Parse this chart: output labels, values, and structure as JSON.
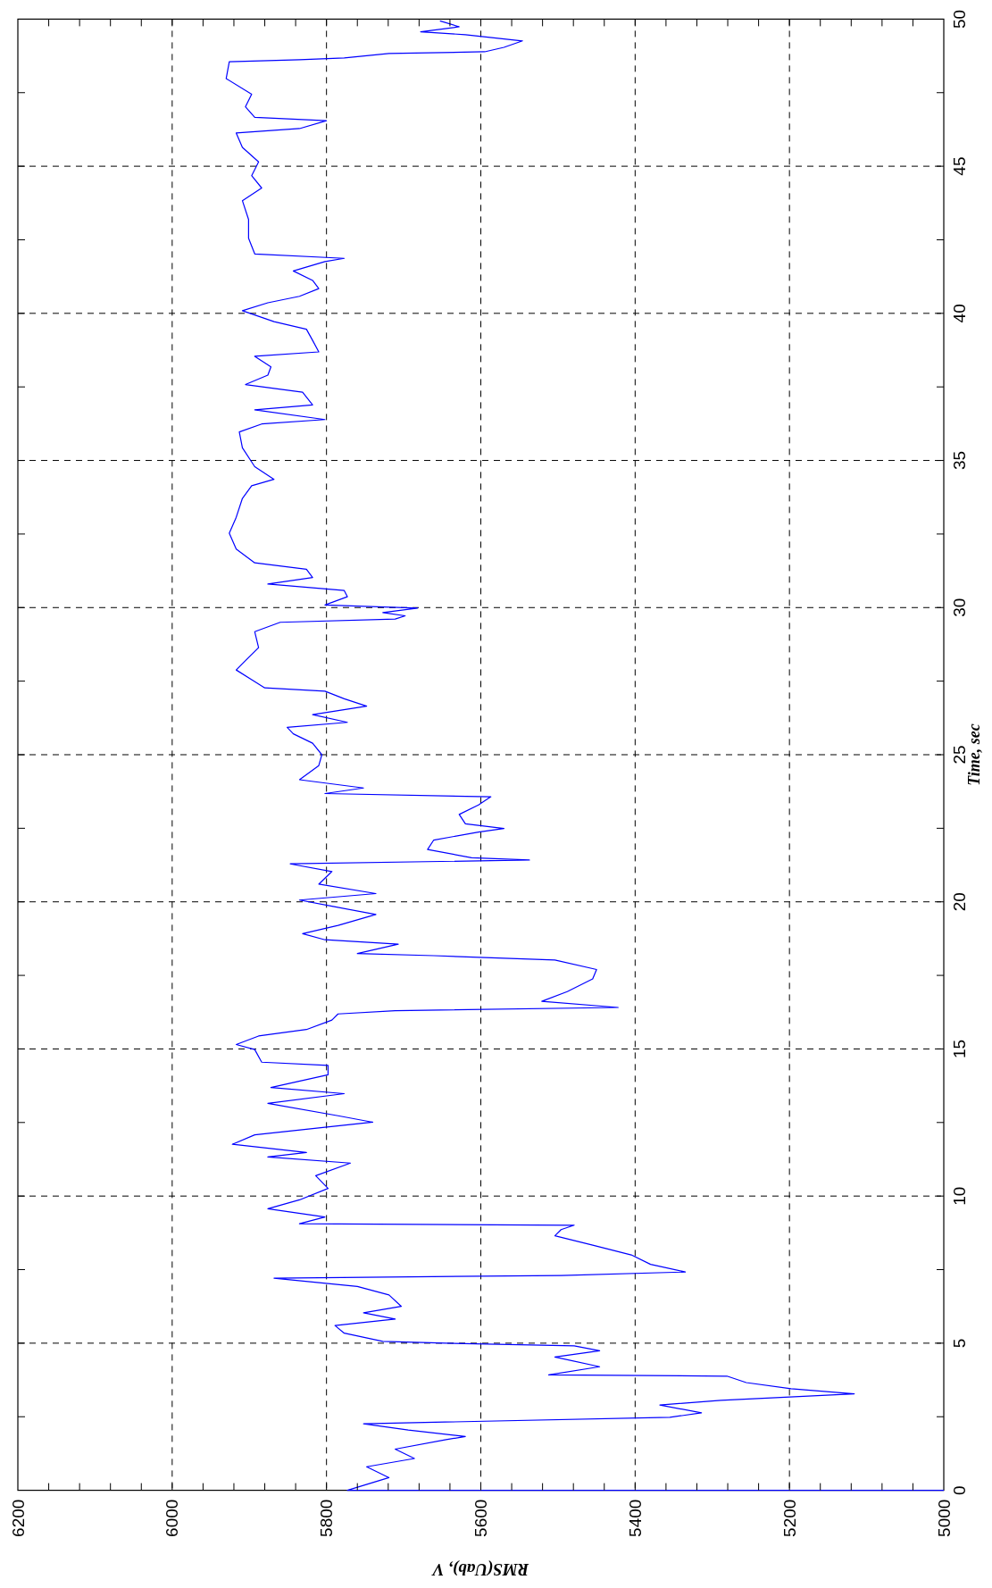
{
  "chart_data": {
    "type": "line",
    "ylabel": "Time, sec",
    "xlabel": "RMS(Uab), V",
    "ylim": [
      0,
      50
    ],
    "xlim": [
      6200,
      5000
    ],
    "yticks": [
      0,
      {
        "value": 2.5,
        "label": null
      },
      5,
      {
        "value": 7.5,
        "label": null
      },
      10,
      {
        "value": 12.5,
        "label": null
      },
      15,
      {
        "value": 17.5,
        "label": null
      },
      20,
      {
        "value": 22.5,
        "label": null
      },
      25,
      {
        "value": 27.5,
        "label": null
      },
      30,
      {
        "value": 32.5,
        "label": null
      },
      35,
      {
        "value": 37.5,
        "label": null
      },
      40,
      {
        "value": 42.5,
        "label": null
      },
      45,
      {
        "value": 47.5,
        "label": null
      },
      50
    ],
    "xticks": [
      5000,
      {
        "value": 5040,
        "label": null
      },
      {
        "value": 5080,
        "label": null
      },
      {
        "value": 5120,
        "label": null
      },
      {
        "value": 5160,
        "label": null
      },
      5200,
      {
        "value": 5240,
        "label": null
      },
      {
        "value": 5280,
        "label": null
      },
      {
        "value": 5320,
        "label": null
      },
      {
        "value": 5360,
        "label": null
      },
      5400,
      {
        "value": 5440,
        "label": null
      },
      {
        "value": 5480,
        "label": null
      },
      {
        "value": 5520,
        "label": null
      },
      {
        "value": 5560,
        "label": null
      },
      5600,
      {
        "value": 5640,
        "label": null
      },
      {
        "value": 5680,
        "label": null
      },
      {
        "value": 5720,
        "label": null
      },
      {
        "value": 5760,
        "label": null
      },
      5800,
      {
        "value": 5840,
        "label": null
      },
      {
        "value": 5880,
        "label": null
      },
      {
        "value": 5920,
        "label": null
      },
      {
        "value": 5960,
        "label": null
      },
      6000,
      {
        "value": 6040,
        "label": null
      },
      {
        "value": 6080,
        "label": null
      },
      {
        "value": 6120,
        "label": null
      },
      {
        "value": 6160,
        "label": null
      },
      6200
    ],
    "grid": true,
    "marker": "none",
    "line_style": "solid",
    "series": [
      {
        "color": "#0000ff",
        "values": [
          0,
          0,
          0.43,
          0.8,
          1.08,
          1.4,
          1.72,
          1.83,
          2.05,
          2.26,
          2.48,
          2.63,
          2.9,
          3.06,
          3.28,
          3.45,
          3.66,
          3.88,
          3.92,
          4.2,
          4.53,
          4.74,
          4.91,
          5,
          5.06,
          5.34,
          5.6,
          5.82,
          6.03,
          6.25,
          6.64,
          6.93,
          7.21,
          7.3,
          7.42,
          7.68,
          8,
          8.33,
          8.65,
          8.86,
          9.01,
          9.06,
          9.29,
          9.57,
          9.87,
          10.26,
          10.69,
          11.12,
          11.33,
          11.48,
          11.76,
          12.08,
          12.34,
          12.51,
          12.73,
          13.15,
          13.48,
          13.69,
          14.12,
          14.44,
          14.55,
          14.98,
          15.15,
          15.44,
          15.66,
          15.98,
          16.19,
          16.3,
          16.41,
          16.62,
          16.95,
          17.38,
          17.7,
          18.02,
          18.17,
          18.24,
          18.56,
          18.71,
          18.92,
          19.2,
          19.57,
          19.85,
          20.06,
          20.28,
          20.6,
          21.03,
          21.29,
          21.42,
          21.5,
          21.78,
          22.1,
          22.37,
          22.49,
          22.65,
          22.97,
          23.29,
          23.57,
          23.68,
          23.87,
          24.15,
          24.63,
          25,
          25.39,
          25.71,
          25.93,
          26.1,
          26.36,
          26.65,
          26.9,
          27.16,
          27.27,
          27.55,
          27.88,
          28.2,
          28.64,
          29.18,
          29.5,
          29.61,
          29.72,
          29.83,
          29.98,
          30.09,
          30.37,
          30.58,
          30.8,
          31.02,
          31.3,
          31.52,
          31.99,
          32.53,
          33.07,
          33.71,
          34.14,
          34.36,
          34.79,
          35.43,
          35.97,
          36.24,
          36.39,
          36.72,
          36.89,
          37.32,
          37.58,
          37.9,
          38.18,
          38.54,
          38.69,
          39.08,
          39.46,
          39.72,
          40.09,
          40.36,
          40.58,
          40.84,
          41.12,
          41.44,
          41.76,
          41.87,
          42.02,
          42.55,
          43.19,
          43.83,
          44.26,
          44.68,
          45.15,
          45.64,
          46.13,
          46.28,
          46.55,
          46.66,
          47.02,
          47.45,
          47.98,
          48.55,
          48.62,
          48.68,
          48.83,
          48.89,
          49.04,
          49.26,
          49.47,
          49.57,
          49.74,
          49.94
        ],
        "x": [
          5000,
          5773,
          5719,
          5748,
          5686,
          5711,
          5645,
          5620,
          5694,
          5752,
          5355,
          5314,
          5368,
          5289,
          5116,
          5198,
          5256,
          5281,
          5512,
          5446,
          5504,
          5446,
          5479,
          5645,
          5727,
          5777,
          5789,
          5711,
          5752,
          5703,
          5719,
          5760,
          5868,
          5496,
          5335,
          5380,
          5405,
          5455,
          5504,
          5496,
          5479,
          5835,
          5802,
          5876,
          5835,
          5798,
          5814,
          5769,
          5876,
          5826,
          5922,
          5893,
          5802,
          5740,
          5785,
          5876,
          5777,
          5872,
          5798,
          5798,
          5884,
          5893,
          5917,
          5888,
          5826,
          5793,
          5785,
          5711,
          5422,
          5521,
          5488,
          5455,
          5450,
          5504,
          5661,
          5760,
          5707,
          5802,
          5831,
          5785,
          5736,
          5793,
          5835,
          5736,
          5810,
          5793,
          5847,
          5537,
          5612,
          5669,
          5661,
          5603,
          5570,
          5620,
          5628,
          5603,
          5587,
          5802,
          5752,
          5835,
          5810,
          5806,
          5818,
          5843,
          5851,
          5773,
          5818,
          5748,
          5777,
          5802,
          5880,
          5897,
          5917,
          5905,
          5888,
          5893,
          5860,
          5711,
          5698,
          5727,
          5682,
          5802,
          5773,
          5777,
          5876,
          5818,
          5826,
          5893,
          5917,
          5926,
          5917,
          5909,
          5897,
          5868,
          5893,
          5909,
          5913,
          5884,
          5802,
          5893,
          5818,
          5831,
          5905,
          5876,
          5872,
          5893,
          5810,
          5818,
          5826,
          5868,
          5909,
          5876,
          5835,
          5810,
          5818,
          5843,
          5802,
          5777,
          5893,
          5901,
          5901,
          5909,
          5884,
          5897,
          5888,
          5909,
          5917,
          5835,
          5800,
          5893,
          5905,
          5897,
          5930,
          5926,
          5835,
          5777,
          5719,
          5595,
          5570,
          5546,
          5620,
          5678,
          5628,
          5653
        ]
      }
    ]
  }
}
